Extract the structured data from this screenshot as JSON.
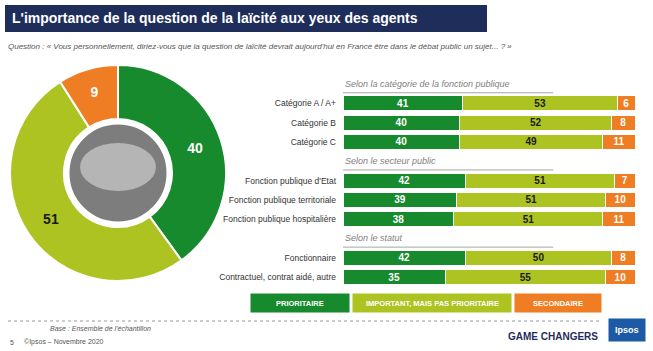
{
  "header": {
    "title": "L'importance de la question de la laïcité aux yeux des agents",
    "question": "Question : « Vous personnellement, diriez-vous que la question de laïcité devrait aujourd'hui en France être dans le débat public un sujet... ? »"
  },
  "footer": {
    "base": "Base : Ensemble de l'échantillon",
    "page": 5,
    "copyright": "©Ipsos – Novembre 2020",
    "brand": "GAME CHANGERS",
    "logo": "Ipsos"
  },
  "chart_data": [
    {
      "type": "pie",
      "categories": [
        "PRIORITAIRE",
        "IMPORTANT, MAIS PAS PRIORITAIRE",
        "SECONDAIRE"
      ],
      "values": [
        40,
        51,
        9
      ],
      "colors": [
        "#168a2c",
        "#adc322",
        "#ee7d23"
      ],
      "data_labels": true
    },
    {
      "type": "bar",
      "orientation": "horizontal",
      "stacked": true,
      "data_labels": true,
      "tick_labels": "y",
      "xlim": [
        0,
        100
      ],
      "categories": [
        "Catégorie A / A+",
        "Catégorie B",
        "Catégorie C",
        "Fonction publique d'Etat",
        "Fonction publique territoriale",
        "Fonction publique hospitalière",
        "Fonctionnaire",
        "Contractuel, contrat aidé, autre"
      ],
      "series": [
        {
          "name": "PRIORITAIRE",
          "color": "#168a2c",
          "values": [
            41,
            40,
            40,
            42,
            39,
            38,
            42,
            35
          ]
        },
        {
          "name": "IMPORTANT, MAIS PAS PRIORITAIRE",
          "color": "#adc322",
          "values": [
            53,
            52,
            49,
            51,
            51,
            51,
            50,
            55
          ]
        },
        {
          "name": "SECONDAIRE",
          "color": "#ee7d23",
          "values": [
            6,
            8,
            11,
            7,
            10,
            11,
            8,
            10
          ]
        }
      ],
      "annotations": [
        {
          "text": "Selon la catégorie de la fonction publique",
          "category": "Catégorie A / A+"
        },
        {
          "text": "Selon le secteur public",
          "category": "Fonction publique d'Etat"
        },
        {
          "text": "Selon le statut",
          "category": "Fonctionnaire"
        }
      ]
    }
  ]
}
